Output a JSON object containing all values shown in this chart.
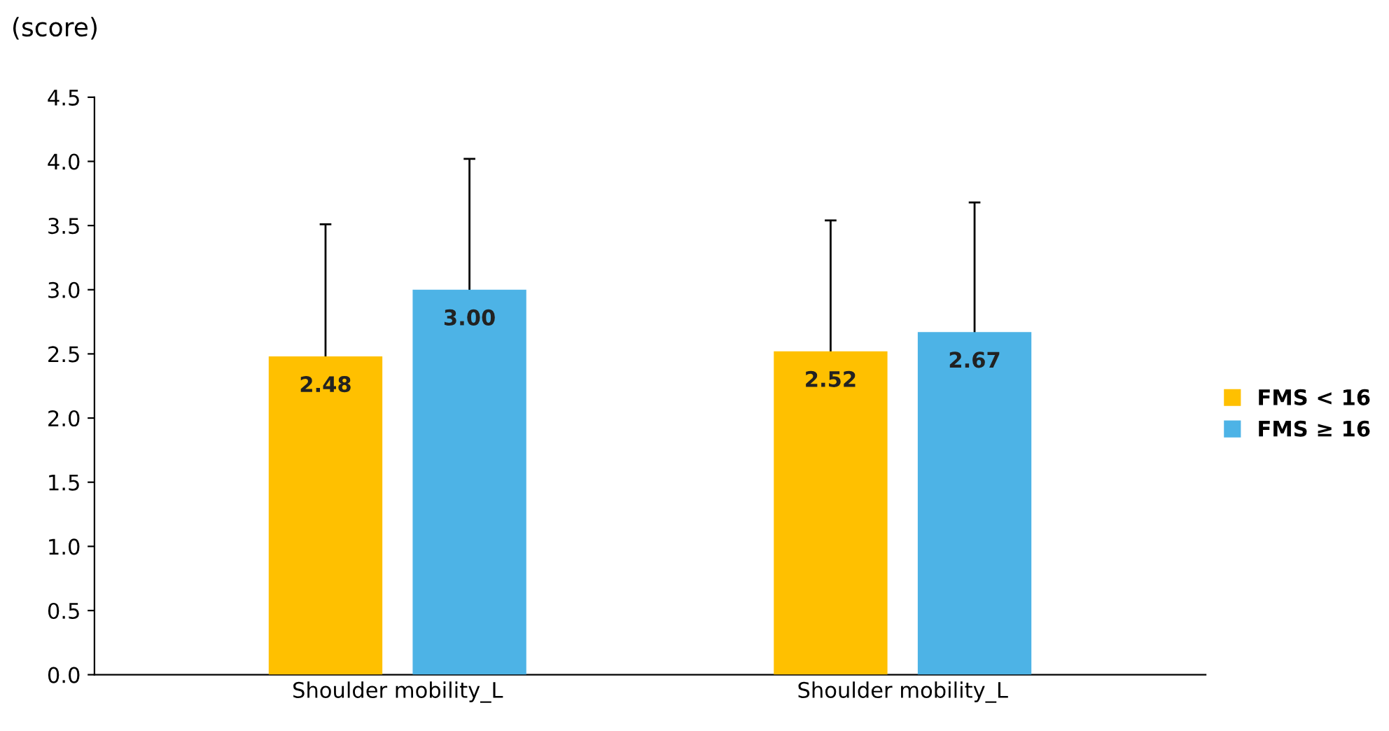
{
  "chart_data": {
    "type": "bar",
    "ylabel": "(score)",
    "categories": [
      "Shoulder mobility_L",
      "Shoulder mobility_L"
    ],
    "series": [
      {
        "name": "FMS < 16",
        "color": "#ffc000",
        "values": [
          2.48,
          2.52
        ],
        "errors": [
          1.03,
          1.02
        ],
        "value_labels": [
          "2.48",
          "2.52"
        ]
      },
      {
        "name": "FMS ≥ 16",
        "color": "#4db3e6",
        "values": [
          3.0,
          2.67
        ],
        "errors": [
          1.02,
          1.01
        ],
        "value_labels": [
          "3.00",
          "2.67"
        ]
      }
    ],
    "ylim": [
      0,
      4.5
    ],
    "yticks": [
      {
        "value": 0,
        "label": "0.0"
      },
      {
        "value": 0.5,
        "label": "0.5"
      },
      {
        "value": 1,
        "label": "1.0"
      },
      {
        "value": 1.5,
        "label": "1.5"
      },
      {
        "value": 2,
        "label": "2.0"
      },
      {
        "value": 2.5,
        "label": "2.5"
      },
      {
        "value": 3,
        "label": "3.0"
      },
      {
        "value": 3.5,
        "label": "3.5"
      },
      {
        "value": 4,
        "label": "4.0"
      },
      {
        "value": 4.5,
        "label": "4.5"
      }
    ],
    "grid": false,
    "legend": "right"
  }
}
